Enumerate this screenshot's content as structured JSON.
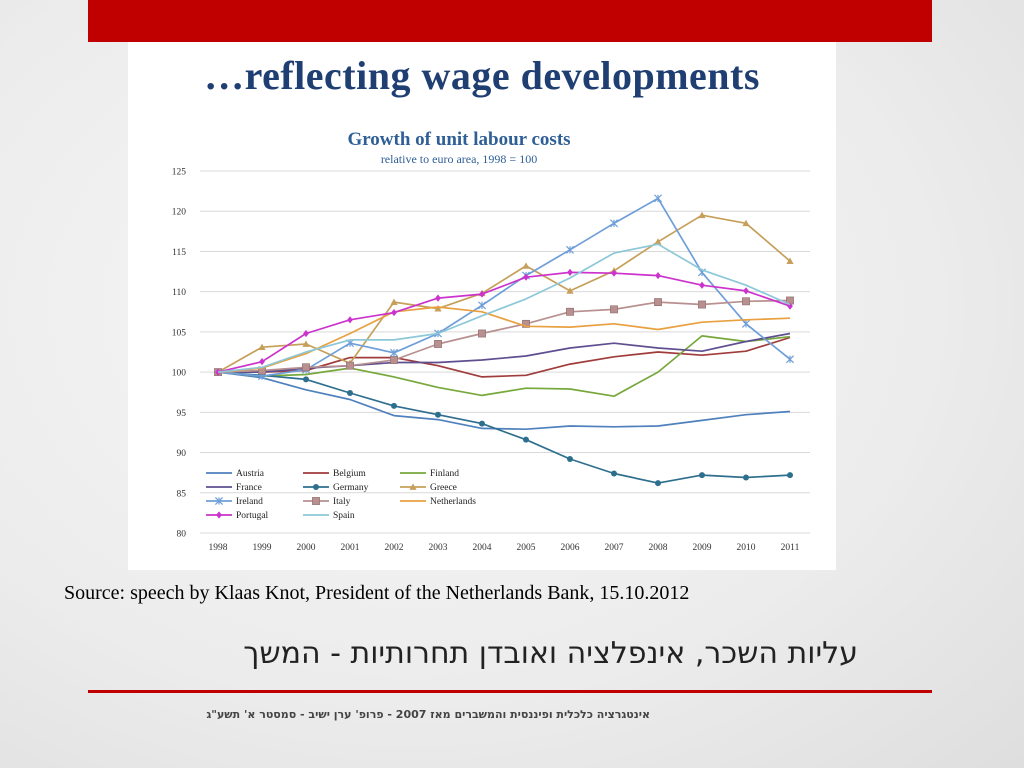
{
  "slide": {
    "heading": "…reflecting wage developments",
    "source": "Source: speech by Klaas Knot, President of the Netherlands Bank, 15.10.2012",
    "hebrew_title": "עליות השכר, אינפלציה ואובדן תחרותיות - המשך",
    "footer": "אינטגרציה כלכלית ופיננסית והמשברים מאז 2007 - פרופ' ערן ישיב - סמסטר א' תשע\"ג"
  },
  "colors": {
    "top_bar": "#c00000",
    "divider": "#c00000",
    "heading": "#1f3f73"
  },
  "chart_data": {
    "type": "line",
    "title": "Growth of  unit labour costs",
    "subtitle": "relative to euro area, 1998 = 100",
    "xlabel": "",
    "ylabel": "",
    "x": [
      "1998",
      "1999",
      "2000",
      "2001",
      "2002",
      "2003",
      "2004",
      "2005",
      "2006",
      "2007",
      "2008",
      "2009",
      "2010",
      "2011"
    ],
    "yticks": [
      80,
      85,
      90,
      95,
      100,
      105,
      110,
      115,
      120,
      125
    ],
    "ylim": [
      80,
      125
    ],
    "grid": "horizontal",
    "legend_position": "bottom-left",
    "series": [
      {
        "name": "Austria",
        "color": "#4f81bd",
        "marker": "none",
        "values": [
          100,
          99.3,
          97.8,
          96.6,
          94.6,
          94.1,
          93.0,
          92.9,
          93.3,
          93.2,
          93.3,
          94.0,
          94.7,
          95.1
        ]
      },
      {
        "name": "Belgium",
        "color": "#a03c3c",
        "marker": "none",
        "values": [
          100,
          100.0,
          100.2,
          101.8,
          101.8,
          100.8,
          99.4,
          99.6,
          101.0,
          101.9,
          102.5,
          102.1,
          102.6,
          104.3
        ]
      },
      {
        "name": "Finland",
        "color": "#77a83c",
        "marker": "none",
        "values": [
          100,
          99.5,
          99.7,
          100.5,
          99.4,
          98.1,
          97.1,
          98.0,
          97.9,
          97.0,
          100.0,
          104.5,
          103.8,
          104.4
        ]
      },
      {
        "name": "France",
        "color": "#5f4f90",
        "marker": "none",
        "values": [
          100,
          100.0,
          100.5,
          100.8,
          101.2,
          101.2,
          101.5,
          102.0,
          103.0,
          103.6,
          103.0,
          102.6,
          103.8,
          104.8
        ]
      },
      {
        "name": "Germany",
        "color": "#2e6f8e",
        "marker": "dot",
        "values": [
          100,
          99.6,
          99.1,
          97.4,
          95.8,
          94.7,
          93.6,
          91.6,
          89.2,
          87.4,
          86.2,
          87.2,
          86.9,
          87.2
        ]
      },
      {
        "name": "Greece",
        "color": "#c6a05a",
        "marker": "triangle",
        "values": [
          100,
          103.1,
          103.5,
          101.1,
          108.7,
          107.9,
          109.8,
          113.2,
          110.1,
          112.6,
          116.2,
          119.5,
          118.5,
          113.8
        ]
      },
      {
        "name": "Ireland",
        "color": "#6f9fd8",
        "marker": "star",
        "values": [
          100,
          99.5,
          100.3,
          103.6,
          102.4,
          104.8,
          108.3,
          112.0,
          115.2,
          118.5,
          121.6,
          112.4,
          106.0,
          101.6
        ]
      },
      {
        "name": "Italy",
        "color": "#b89090",
        "marker": "square",
        "values": [
          100,
          100.2,
          100.6,
          100.8,
          101.5,
          103.5,
          104.8,
          106.0,
          107.5,
          107.8,
          108.7,
          108.4,
          108.8,
          108.9
        ]
      },
      {
        "name": "Netherlands",
        "color": "#e8a040",
        "marker": "none",
        "values": [
          100,
          100.5,
          102.3,
          104.8,
          107.5,
          108.1,
          107.5,
          105.7,
          105.6,
          106.0,
          105.3,
          106.2,
          106.5,
          106.7
        ]
      },
      {
        "name": "Portugal",
        "color": "#cc33cc",
        "marker": "diamond",
        "values": [
          100,
          101.3,
          104.8,
          106.5,
          107.4,
          109.2,
          109.7,
          111.8,
          112.4,
          112.3,
          112.0,
          110.8,
          110.1,
          108.2
        ]
      },
      {
        "name": "Spain",
        "color": "#8cc8d8",
        "marker": "none",
        "values": [
          100,
          100.6,
          102.5,
          104.0,
          104.0,
          104.8,
          107.0,
          109.1,
          111.7,
          114.8,
          115.9,
          112.7,
          110.8,
          108.4
        ]
      }
    ]
  }
}
